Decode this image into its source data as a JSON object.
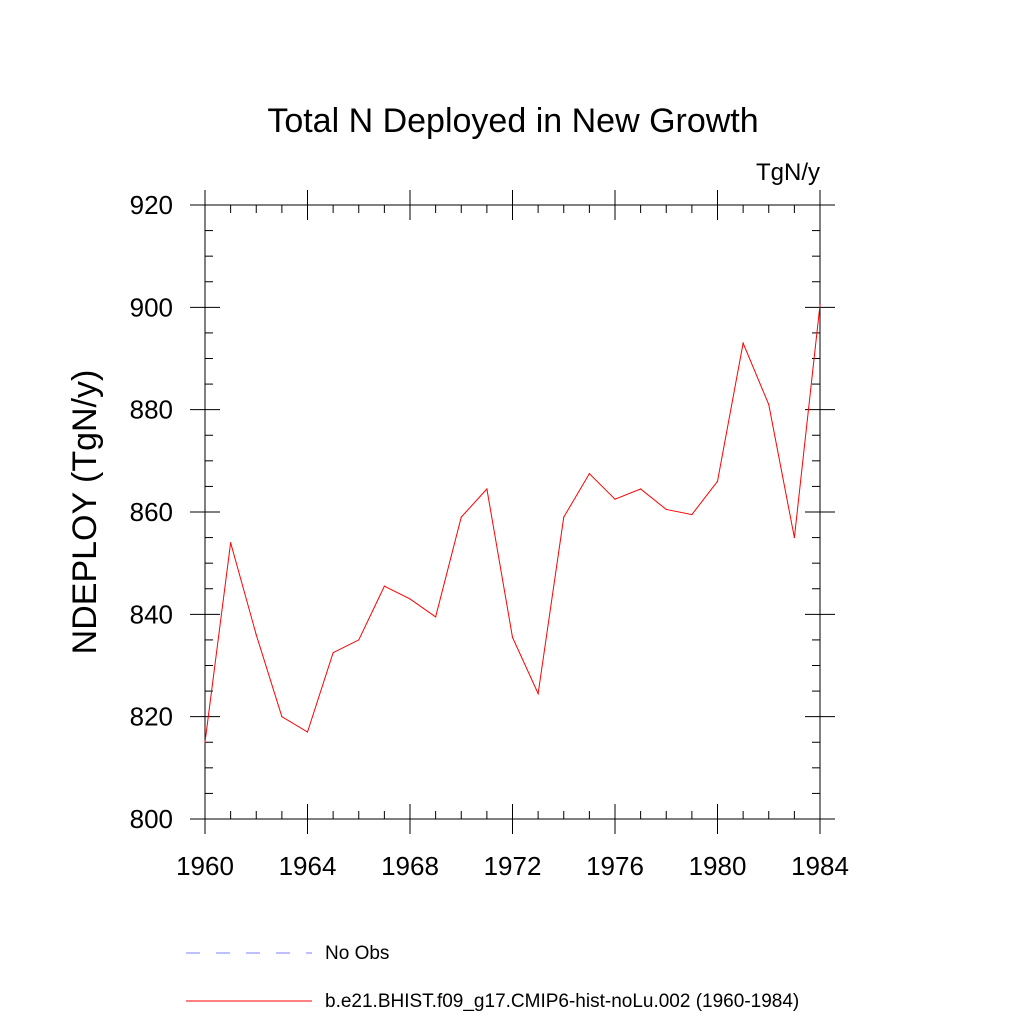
{
  "chart_data": {
    "type": "line",
    "title": "Total N Deployed in New Growth",
    "units_label": "TgN/y",
    "ylabel": "NDEPLOY  (TgN/y)",
    "xlabel": "",
    "xlim": [
      1960,
      1984
    ],
    "ylim": [
      800,
      920
    ],
    "x_ticks": [
      1960,
      1964,
      1968,
      1972,
      1976,
      1980,
      1984
    ],
    "y_ticks": [
      800,
      820,
      840,
      860,
      880,
      900,
      920
    ],
    "x_minor_step": 1,
    "y_minor_step": 5,
    "grid": false,
    "legend_position": "bottom",
    "series": [
      {
        "name": "b.e21.BHIST.f09_g17.CMIP6-hist-noLu.002 (1960-1984)",
        "color": "#ff0000",
        "dash": "solid",
        "x": [
          1960,
          1961,
          1962,
          1963,
          1964,
          1965,
          1966,
          1967,
          1968,
          1969,
          1970,
          1971,
          1972,
          1973,
          1974,
          1975,
          1976,
          1977,
          1978,
          1979,
          1980,
          1981,
          1982,
          1983,
          1984
        ],
        "values": [
          815,
          854,
          836,
          820,
          817,
          832.5,
          835,
          845.5,
          843,
          839.5,
          859,
          864.5,
          835.5,
          824.5,
          859,
          867.5,
          862.5,
          864.5,
          860.5,
          859.5,
          866,
          893,
          881,
          855,
          900.5
        ]
      }
    ],
    "legend": [
      {
        "label": "No Obs",
        "color": "#7f7fff",
        "dash": "dashed"
      },
      {
        "label": "b.e21.BHIST.f09_g17.CMIP6-hist-noLu.002 (1960-1984)",
        "color": "#ff0000",
        "dash": "solid"
      }
    ]
  }
}
